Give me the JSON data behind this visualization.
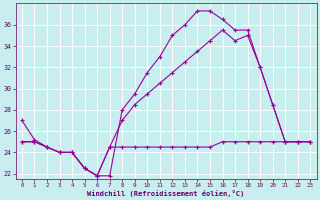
{
  "bg_color": "#c8eef0",
  "line_color": "#990099",
  "grid_color": "#ffffff",
  "xlabel": "Windchill (Refroidissement éolien,°C)",
  "xlabel_color": "#660066",
  "tick_color": "#660066",
  "ylim": [
    21.5,
    38.0
  ],
  "xlim": [
    -0.5,
    23.5
  ],
  "yticks": [
    22,
    24,
    26,
    28,
    30,
    32,
    34,
    36
  ],
  "xticks": [
    0,
    1,
    2,
    3,
    4,
    5,
    6,
    7,
    8,
    9,
    10,
    11,
    12,
    13,
    14,
    15,
    16,
    17,
    18,
    19,
    20,
    21,
    22,
    23
  ],
  "line1_x": [
    0,
    1,
    2,
    3,
    4,
    5,
    6,
    7,
    8,
    9,
    10,
    11,
    12,
    13,
    14,
    15,
    16,
    17,
    18,
    19,
    20,
    21,
    22,
    23
  ],
  "line1_y": [
    27.0,
    25.2,
    24.5,
    24.0,
    24.0,
    22.5,
    21.8,
    21.8,
    28.0,
    29.5,
    31.5,
    33.0,
    35.0,
    36.0,
    37.3,
    37.3,
    36.5,
    35.5,
    35.5,
    32.0,
    28.5,
    25.0,
    25.0,
    25.0
  ],
  "line2_x": [
    0,
    1,
    2,
    3,
    4,
    5,
    6,
    7,
    8,
    9,
    10,
    11,
    12,
    13,
    14,
    15,
    16,
    17,
    18,
    19,
    20,
    21,
    22,
    23
  ],
  "line2_y": [
    25.0,
    25.0,
    24.5,
    24.0,
    24.0,
    22.5,
    21.8,
    24.5,
    27.0,
    28.5,
    29.5,
    30.5,
    31.5,
    32.5,
    33.5,
    34.5,
    35.5,
    34.5,
    35.0,
    32.0,
    28.5,
    25.0,
    25.0,
    25.0
  ],
  "line3_x": [
    0,
    1,
    2,
    3,
    4,
    5,
    6,
    7,
    8,
    9,
    10,
    11,
    12,
    13,
    14,
    15,
    16,
    17,
    18,
    19,
    20,
    21,
    22,
    23
  ],
  "line3_y": [
    25.0,
    25.0,
    24.5,
    24.0,
    24.0,
    22.5,
    21.8,
    24.5,
    24.5,
    24.5,
    24.5,
    24.5,
    24.5,
    24.5,
    24.5,
    24.5,
    25.0,
    25.0,
    25.0,
    25.0,
    25.0,
    25.0,
    25.0,
    25.0
  ],
  "figsize": [
    3.2,
    2.0
  ],
  "dpi": 100
}
